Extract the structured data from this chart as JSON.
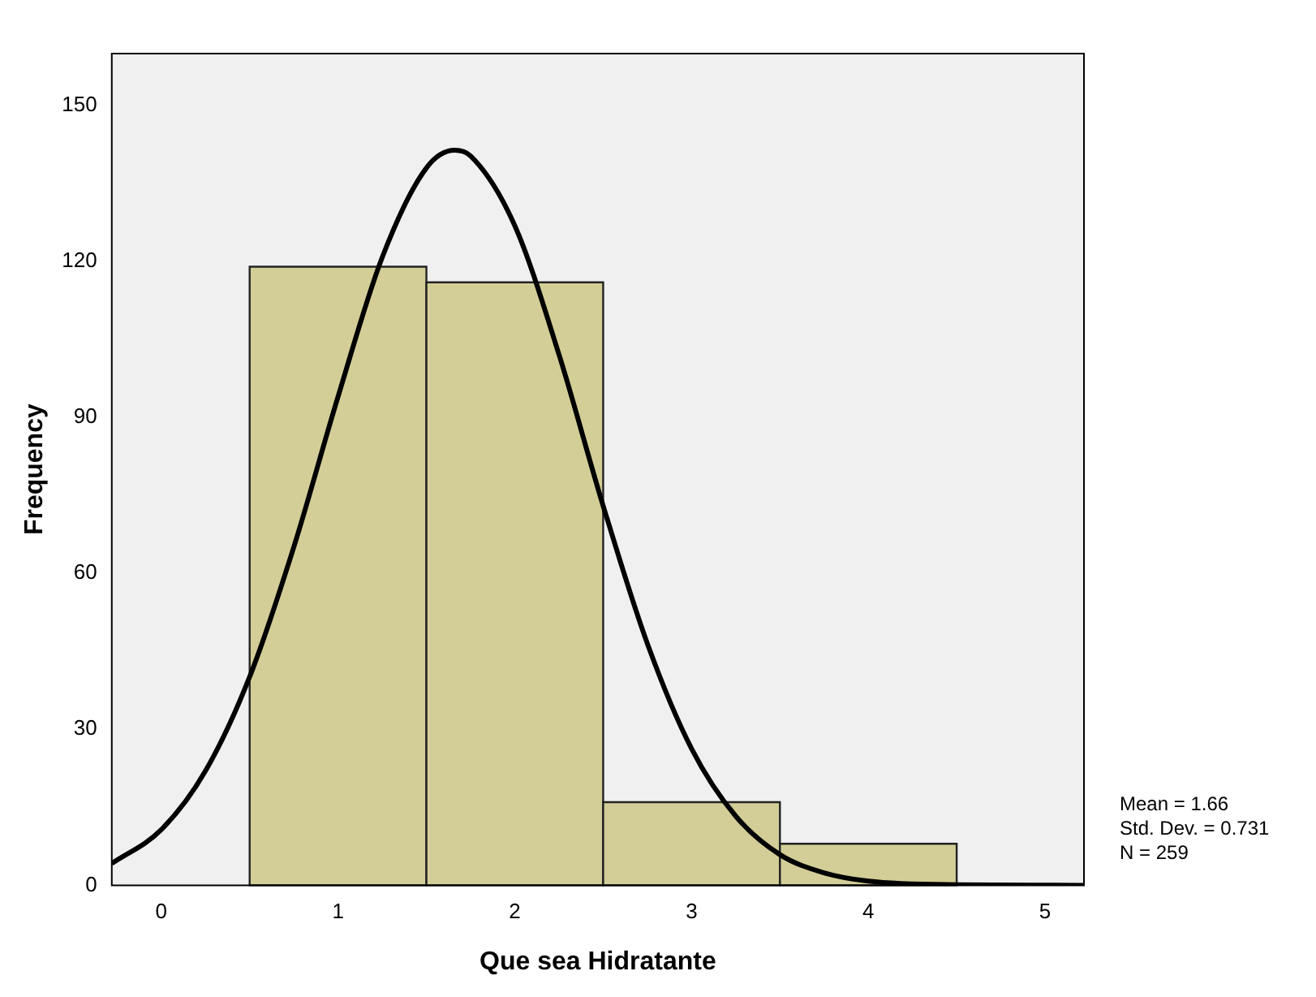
{
  "chart_data": {
    "type": "histogram",
    "xlabel": "Que sea Hidratante",
    "ylabel": "Frequency",
    "bins": [
      0.5,
      1.5,
      2.5,
      3.5,
      4.5
    ],
    "values": [
      119,
      116,
      16,
      8
    ],
    "color": "#d3ce97",
    "series": [
      {
        "type": "line",
        "color": "#000000",
        "x": [
          -0.28,
          0,
          0.25,
          0.5,
          0.75,
          1,
          1.25,
          1.5,
          1.66,
          1.75,
          2,
          2.25,
          2.5,
          2.75,
          3,
          3.25,
          3.5,
          3.75,
          4,
          4.5,
          5.22
        ],
        "values": [
          4.2,
          10.7,
          22,
          40.1,
          65.1,
          94,
          120.8,
          138,
          141.4,
          140.3,
          126.9,
          102.1,
          73,
          46.5,
          26.3,
          13.3,
          5.9,
          2.4,
          0.8,
          0.1,
          0
        ]
      }
    ],
    "marker": "none",
    "xlim": [
      -0.28,
      5.22
    ],
    "xticks": [
      0,
      1,
      2,
      3,
      4,
      5
    ],
    "ylim": [
      0,
      160
    ],
    "yticks": [
      0,
      30,
      60,
      90,
      120,
      150
    ],
    "annotations": [
      "Mean = 1.66",
      "Std. Dev. = 0.731",
      "N = 259"
    ]
  }
}
